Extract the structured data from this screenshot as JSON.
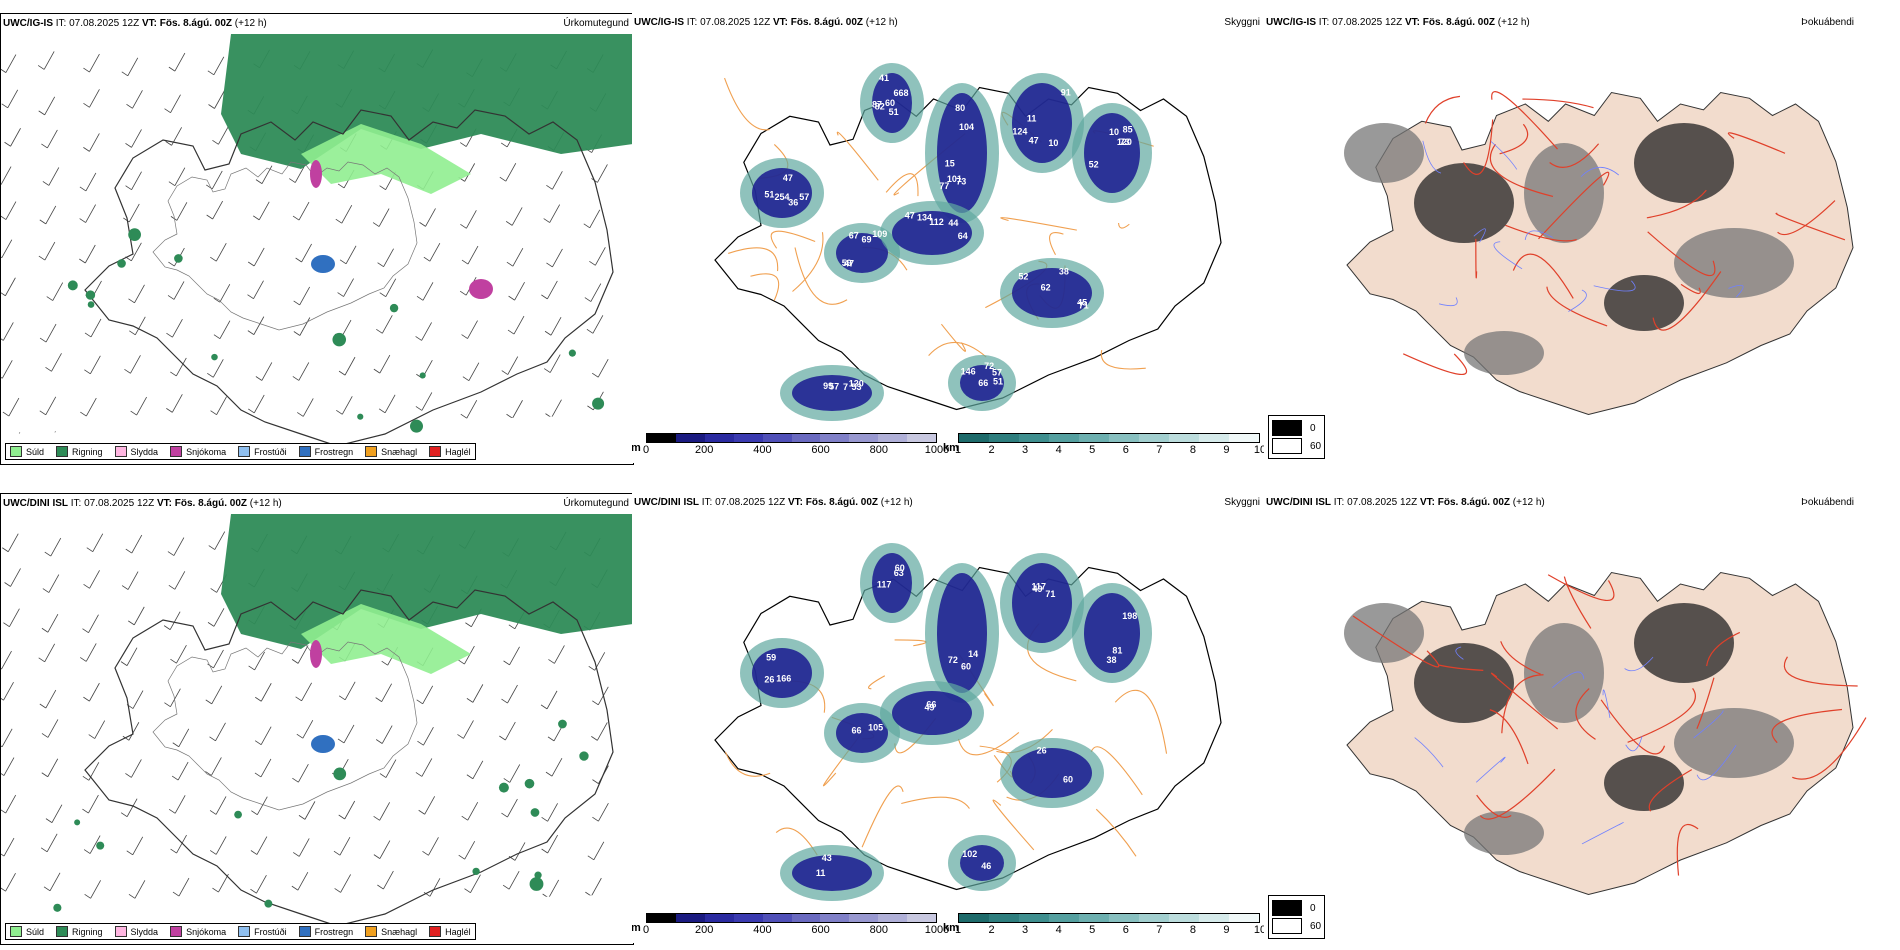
{
  "rows": [
    {
      "id": "igis",
      "precip_panel": {
        "model": "UWC/IG-IS",
        "it_label": "IT:",
        "it_value": "07.08.2025 12Z",
        "vt_label": "VT:",
        "vt_value": "Fös. 8.ágú. 00Z",
        "lead": "(+12 h)",
        "title_right": "Úrkomutegund"
      },
      "cloud_panel": {
        "model": "UWC/IG-IS",
        "it_label": "IT:",
        "it_value": "07.08.2025 12Z",
        "vt_label": "VT:",
        "vt_value": "Fös. 8.ágú. 00Z",
        "lead": "(+12 h)",
        "title_right": "Skyggni",
        "labels": [
          "60",
          "15",
          "11",
          "52",
          "47",
          "67",
          "62",
          "47",
          "57",
          "72",
          "82",
          "101",
          "47",
          "85",
          "57",
          "69",
          "38",
          "44",
          "53",
          "51",
          "41",
          "73",
          "91",
          "10",
          "36",
          "59",
          "52",
          "64",
          "7",
          "146",
          "51",
          "77",
          "124",
          "120",
          "254",
          "47",
          "71",
          "134",
          "120",
          "66",
          "87",
          "80",
          "10",
          "73",
          "51",
          "109",
          "45",
          "112",
          "99",
          "57",
          "668",
          "104"
        ]
      },
      "fog_panel": {
        "model": "UWC/IG-IS",
        "it_label": "IT:",
        "it_value": "07.08.2025 12Z",
        "vt_label": "VT:",
        "vt_value": "Fös. 8.ágú. 00Z",
        "lead": "(+12 h)",
        "title_right": "Þokuábendi"
      }
    },
    {
      "id": "dini",
      "precip_panel": {
        "model": "UWC/DINI ISL",
        "it_label": "IT:",
        "it_value": "07.08.2025 12Z",
        "vt_label": "VT:",
        "vt_value": "Fös. 8.ágú. 00Z",
        "lead": "(+12 h)",
        "title_right": "Úrkomutegund"
      },
      "cloud_panel": {
        "model": "UWC/DINI ISL",
        "it_label": "IT:",
        "it_value": "07.08.2025 12Z",
        "vt_label": "VT:",
        "vt_value": "Fös. 8.ágú. 00Z",
        "lead": "(+12 h)",
        "title_right": "Skyggni",
        "labels": [
          "60",
          "72",
          "49",
          "38",
          "59",
          "66",
          "26",
          "66",
          "11",
          "46",
          "117",
          "60",
          "71",
          "198",
          "166",
          "105",
          "60",
          "49",
          "43",
          "102",
          "63",
          "14",
          "117",
          "81",
          "26"
        ]
      },
      "fog_panel": {
        "model": "UWC/DINI ISL",
        "it_label": "IT:",
        "it_value": "07.08.2025 12Z",
        "vt_label": "VT:",
        "vt_value": "Fös. 8.ágú. 00Z",
        "lead": "(+12 h)",
        "title_right": "Þokuábendi"
      }
    }
  ],
  "precip_legend": [
    {
      "label": "Súld",
      "color": "#90ee90"
    },
    {
      "label": "Rigning",
      "color": "#2e8b57"
    },
    {
      "label": "Slydda",
      "color": "#ffb6e1"
    },
    {
      "label": "Snjókoma",
      "color": "#c040a0"
    },
    {
      "label": "Frostúði",
      "color": "#8fbfef"
    },
    {
      "label": "Frostregn",
      "color": "#3070c0"
    },
    {
      "label": "Snæhagl",
      "color": "#f0a020"
    },
    {
      "label": "Haglél",
      "color": "#e02020"
    }
  ],
  "cloud_base_bar": {
    "unit": "m",
    "ticks": [
      "0",
      "200",
      "400",
      "600",
      "800",
      "1000"
    ],
    "colors": [
      "#000000",
      "#1a1a80",
      "#2a2aa0",
      "#3a3ab0",
      "#5050b8",
      "#6a6ac0",
      "#8080c8",
      "#9898d0",
      "#b0b0d8",
      "#c8c8e0"
    ]
  },
  "visibility_bar": {
    "unit": "km",
    "ticks": [
      "1",
      "2",
      "3",
      "4",
      "5",
      "6",
      "7",
      "8",
      "9",
      "10"
    ],
    "colors": [
      "#1e6b6b",
      "#2e7e7e",
      "#3f8f8f",
      "#55a0a0",
      "#6db0b0",
      "#88c0c0",
      "#a2cfcf",
      "#bcdddd",
      "#d6ebeb",
      "#f0f8f8"
    ]
  },
  "fog_legend": [
    {
      "label": "0",
      "color": "#000000"
    },
    {
      "label": "60",
      "color": "#ffffff"
    }
  ]
}
